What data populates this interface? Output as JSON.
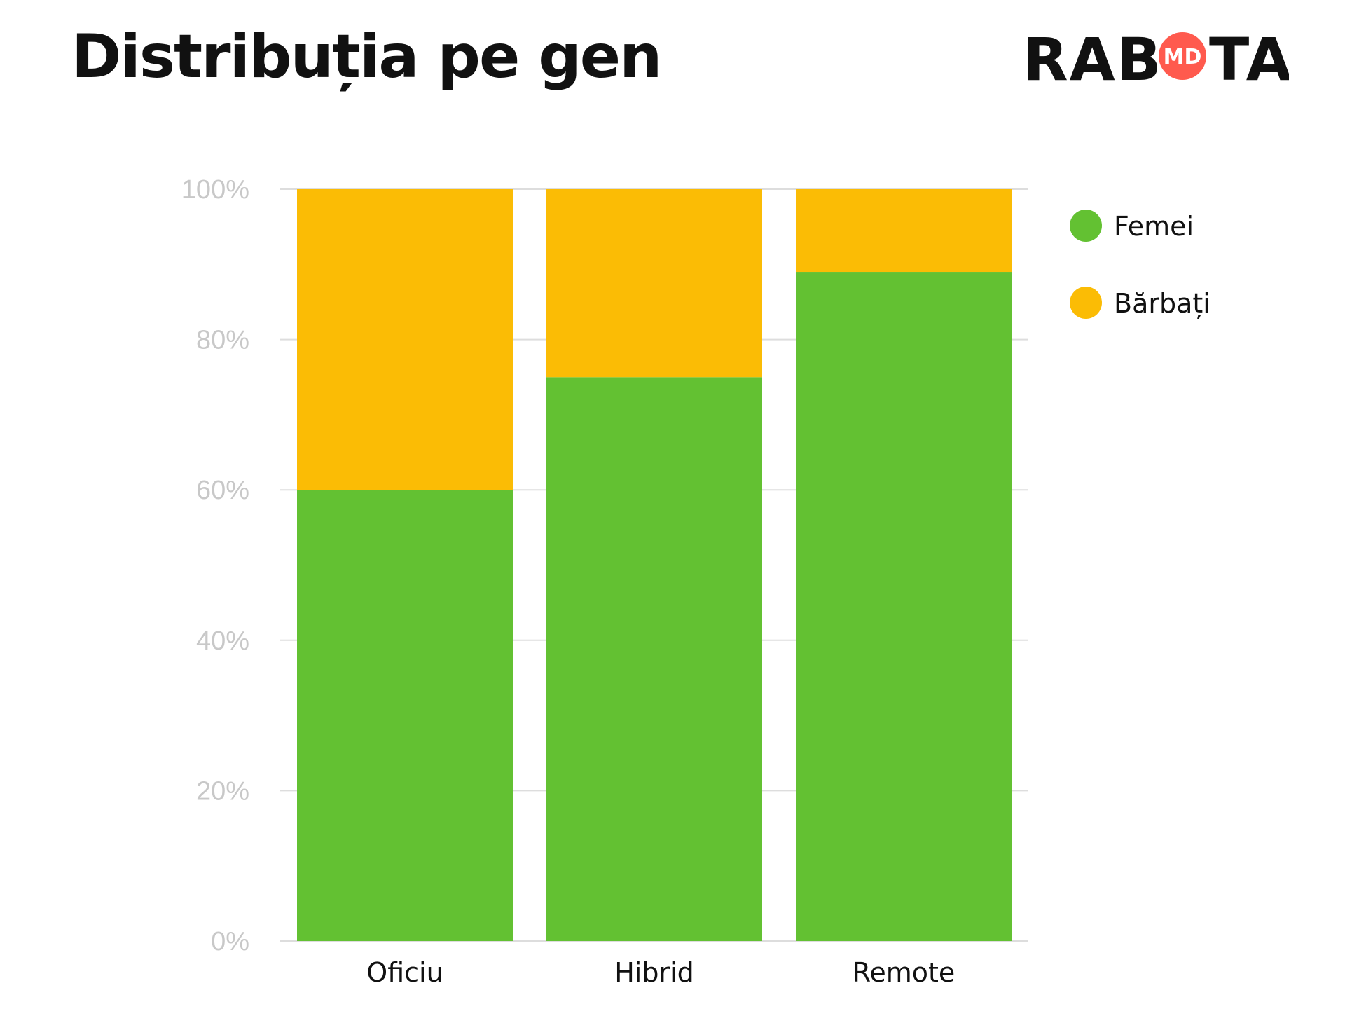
{
  "page": {
    "title": "Distribuția pe gen"
  },
  "logo": {
    "left_text": "RAB",
    "badge_text": "MD",
    "right_text": "TA",
    "badge_color": "#ff5a4e"
  },
  "chart_data": {
    "type": "bar",
    "stacked": true,
    "categories": [
      "Oficiu",
      "Hibrid",
      "Remote"
    ],
    "series": [
      {
        "name": "Femei",
        "color": "#63c132",
        "values": [
          60,
          75,
          89
        ]
      },
      {
        "name": "Bărbați",
        "color": "#fbbc05",
        "values": [
          40,
          25,
          11
        ]
      }
    ],
    "ylim": [
      0,
      100
    ],
    "yticks": [
      0,
      20,
      40,
      60,
      80,
      100
    ],
    "ytick_labels": [
      "0%",
      "20%",
      "40%",
      "60%",
      "80%",
      "100%"
    ],
    "grid": true,
    "legend": "right"
  }
}
